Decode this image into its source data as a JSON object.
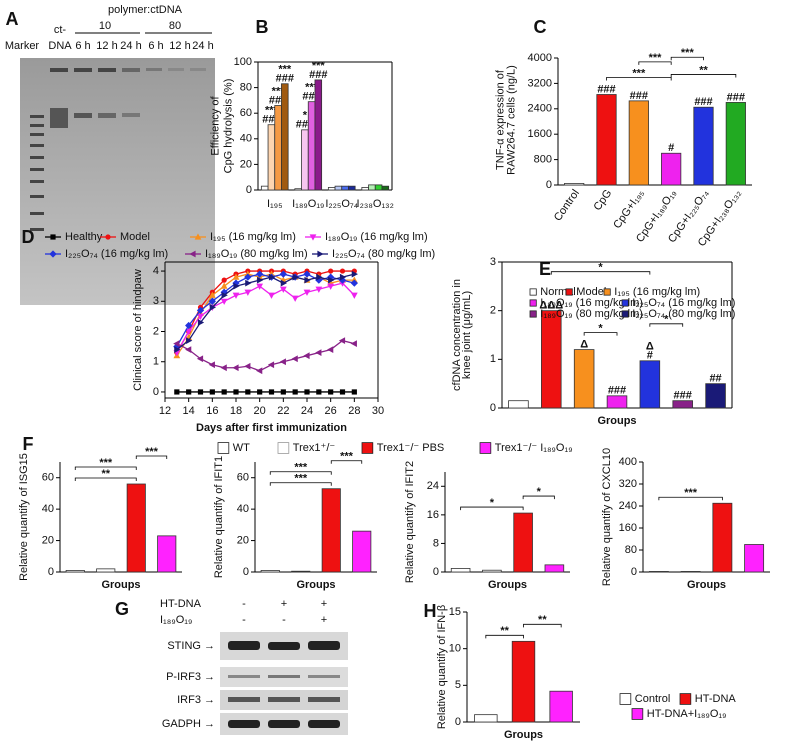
{
  "gel_A": {
    "panel": "A",
    "title": "polymer:ctDNA",
    "ratios": [
      "10",
      "80"
    ],
    "marker": "Marker",
    "ct_dna": [
      "ct-",
      "DNA"
    ],
    "times": [
      "6 h",
      "12 h",
      "24 h",
      "6 h",
      "12 h",
      "24 h"
    ]
  },
  "blot_G": {
    "panel": "G",
    "conditions": [
      {
        "label": "HT-DNA",
        "signs": [
          "-",
          "+",
          "+"
        ]
      },
      {
        "label": "I₁₈₉O₁₉",
        "signs": [
          "-",
          "-",
          "+"
        ]
      }
    ],
    "bands": [
      "STING →",
      "P-IRF3 →",
      "IRF3 →",
      "GADPH →"
    ]
  },
  "chart_data": [
    {
      "type": "grouped_bar",
      "panel": "B",
      "ylabel": [
        "Efficiency of",
        "CpG hydrolysis (%)"
      ],
      "categories": [
        "I₁₉₅",
        "I₁₈₉O₁₉",
        "I₂₂₅O₇₄",
        "I₂₃₈O₁₃₂"
      ],
      "ylim": [
        0,
        100
      ],
      "yticks": [
        0,
        20,
        40,
        60,
        80,
        100
      ],
      "series": [
        {
          "values": [
            3,
            1,
            2,
            2
          ],
          "colors": [
            "#ffffff",
            "#ffffff",
            "#ffffff",
            "#ffffff"
          ]
        },
        {
          "values": [
            51,
            47,
            3,
            4
          ],
          "colors": [
            "#fdd5b0",
            "#f7c6f0",
            "#b8c8f5",
            "#b5f0b5"
          ],
          "labels": [
            [
              "***",
              "###"
            ],
            [
              "*",
              "###"
            ],
            null,
            null
          ]
        },
        {
          "values": [
            66,
            69,
            3,
            4
          ],
          "colors": [
            "#f59a45",
            "#e060e0",
            "#4a6cf0",
            "#30d030"
          ],
          "labels": [
            [
              "***",
              "###"
            ],
            [
              "***",
              "###"
            ],
            null,
            null
          ]
        },
        {
          "values": [
            83,
            86,
            3,
            3
          ],
          "colors": [
            "#a05a10",
            "#8a1a8a",
            "#1a2a9a",
            "#1a6a1a"
          ],
          "labels": [
            [
              "***",
              "###"
            ],
            [
              "***",
              "###"
            ],
            null,
            null
          ]
        }
      ]
    },
    {
      "type": "bar",
      "panel": "C",
      "ylabel": [
        "TNF-α expression of",
        "RAW264.7 cells (ng/L)"
      ],
      "categories": [
        "Control",
        "CpG",
        "CpG+I₁₉₅",
        "CpG+I₁₈₉O₁₉",
        "CpG+I₂₂₅O₇₄",
        "CpG+I₂₃₈O₁₃₂"
      ],
      "values": [
        50,
        2850,
        2650,
        1000,
        2450,
        2600
      ],
      "colors": [
        "#ffffff",
        "#ee1111",
        "#f7901e",
        "#ee22ee",
        "#2233dd",
        "#22aa22"
      ],
      "labels": [
        null,
        "###",
        "###",
        "#",
        "###",
        "###"
      ],
      "ylim": [
        0,
        4000
      ],
      "yticks": [
        0,
        800,
        1600,
        2400,
        3200,
        4000
      ],
      "brackets": [
        {
          "from": 1,
          "to": 3,
          "text": "***"
        },
        {
          "from": 3,
          "to": 5,
          "text": "**"
        },
        {
          "from": 2,
          "to": 3,
          "text": "***"
        },
        {
          "from": 3,
          "to": 4,
          "text": "***"
        }
      ]
    },
    {
      "type": "line",
      "panel": "D",
      "xlabel": "Days after first immunization",
      "ylabel": "Clinical score of hindpaw",
      "xlim": [
        12,
        30
      ],
      "xticks": [
        12,
        14,
        16,
        18,
        20,
        22,
        24,
        26,
        28,
        30
      ],
      "ylim": [
        -0.2,
        4.3
      ],
      "yticks": [
        0,
        1,
        2,
        3,
        4
      ],
      "x": [
        13,
        14,
        15,
        16,
        17,
        18,
        19,
        20,
        21,
        22,
        23,
        24,
        25,
        26,
        27,
        28
      ],
      "series": [
        {
          "name": "Healthy",
          "color": "#000000",
          "marker": "square",
          "values": [
            0,
            0,
            0,
            0,
            0,
            0,
            0,
            0,
            0,
            0,
            0,
            0,
            0,
            0,
            0,
            0
          ]
        },
        {
          "name": "Model",
          "color": "#ee1111",
          "marker": "circle",
          "values": [
            1.3,
            2.0,
            2.8,
            3.3,
            3.7,
            3.9,
            4.0,
            4.0,
            4.0,
            4.0,
            3.9,
            4.0,
            3.9,
            4.0,
            4.0,
            4.0
          ]
        },
        {
          "name": "I₁₉₅ (16 mg/kg lm)",
          "color": "#f7901e",
          "marker": "triangle-up",
          "values": [
            1.2,
            1.8,
            2.6,
            3.2,
            3.5,
            3.8,
            3.9,
            3.8,
            3.9,
            3.7,
            3.8,
            3.7,
            3.8,
            3.6,
            3.7,
            3.7
          ]
        },
        {
          "name": "I₁₈₉O₁₉ (16 mg/kg lm)",
          "color": "#ee22ee",
          "marker": "triangle-down",
          "values": [
            1.3,
            2.0,
            2.5,
            2.8,
            3.0,
            3.2,
            3.3,
            3.5,
            3.2,
            3.4,
            3.1,
            3.3,
            3.4,
            3.5,
            3.6,
            3.2
          ]
        },
        {
          "name": "I₂₂₅O₇₄ (16 mg/kg lm)",
          "color": "#2233dd",
          "marker": "diamond",
          "values": [
            1.5,
            2.2,
            2.7,
            3.0,
            3.3,
            3.6,
            3.8,
            3.9,
            3.8,
            3.9,
            3.8,
            3.9,
            3.7,
            3.8,
            3.7,
            3.6
          ]
        },
        {
          "name": "I₁₈₉O₁₉ (80 mg/kg lm)",
          "color": "#882288",
          "marker": "triangle-left",
          "values": [
            1.6,
            1.4,
            1.1,
            0.9,
            0.8,
            0.8,
            0.85,
            0.7,
            0.9,
            1.0,
            1.1,
            1.2,
            1.3,
            1.4,
            1.7,
            1.6
          ]
        },
        {
          "name": "I₂₂₅O₇₄ (80 mg/kg lm)",
          "color": "#1a1a77",
          "marker": "triangle-right",
          "values": [
            1.4,
            1.7,
            2.3,
            2.8,
            3.2,
            3.5,
            3.6,
            3.7,
            3.8,
            3.6,
            3.8,
            3.7,
            3.8,
            3.7,
            3.8,
            3.9
          ]
        }
      ]
    },
    {
      "type": "bar",
      "panel": "E",
      "xlabel": "Groups",
      "ylabel": [
        "cfDNA concentration in",
        "knee joint (μg/mL)"
      ],
      "values": [
        0.15,
        2.0,
        1.2,
        0.25,
        0.97,
        0.15,
        0.5
      ],
      "colors": [
        "#ffffff",
        "#ee1111",
        "#f7901e",
        "#ee22ee",
        "#2233dd",
        "#882288",
        "#1a1a77"
      ],
      "labels": [
        null,
        "ΔΔΔ",
        "Δ",
        "###",
        [
          "Δ",
          "#"
        ],
        "###",
        "##"
      ],
      "ylim": [
        0,
        3
      ],
      "yticks": [
        0,
        1,
        2,
        3
      ],
      "legend": [
        {
          "name": "Normal",
          "color": "#ffffff"
        },
        {
          "name": "Model",
          "color": "#ee1111"
        },
        {
          "name": "I₁₉₅ (16 mg/kg lm)",
          "color": "#f7901e"
        },
        {
          "name": "I₁₈₉O₁₉ (16 mg/kg lm)",
          "color": "#ee22ee"
        },
        {
          "name": "I₂₂₅O₇₄ (16 mg/kg lm)",
          "color": "#2233dd"
        },
        {
          "name": "I₁₈₉O₁₉ (80 mg/kg lm)",
          "color": "#882288"
        },
        {
          "name": "I₂₂₅O₇₄ (80 mg/kg lm)",
          "color": "#1a1a77"
        }
      ],
      "brackets": [
        {
          "from": 2,
          "to": 3,
          "text": "*"
        },
        {
          "from": 4,
          "to": 5,
          "text": "*"
        },
        {
          "from": 1,
          "to": 4,
          "text": "*"
        }
      ]
    },
    {
      "type": "bar",
      "panel": "F",
      "xlabel": "Groups",
      "ylabel": "Relative quantify of ISG15",
      "values": [
        1,
        2,
        56,
        23
      ],
      "colors": [
        "#ffffff",
        "#ffffff",
        "#ee1111",
        "#ff22ff"
      ],
      "ylim": [
        0,
        70
      ],
      "yticks": [
        0,
        20,
        40,
        60
      ],
      "legend": [
        {
          "name": "WT",
          "color": "#ffffff"
        },
        {
          "name": "Trex1⁺/⁻",
          "color": "#ffffff"
        },
        {
          "name": "Trex1⁻/⁻ PBS",
          "color": "#ee1111"
        },
        {
          "name": "Trex1⁻/⁻ I₁₈₉O₁₉",
          "color": "#ff22ff"
        }
      ],
      "brackets": [
        {
          "from": 0,
          "to": 2,
          "text": "**"
        },
        {
          "from": 0,
          "to": 2,
          "text": "***"
        },
        {
          "from": 2,
          "to": 3,
          "text": "***"
        }
      ]
    },
    {
      "type": "bar",
      "xlabel": "Groups",
      "ylabel": "Relative quantify of IFIT1",
      "values": [
        1,
        0.5,
        53,
        26
      ],
      "colors": [
        "#ffffff",
        "#ffffff",
        "#ee1111",
        "#ff22ff"
      ],
      "ylim": [
        0,
        70
      ],
      "yticks": [
        0,
        20,
        40,
        60
      ],
      "brackets": [
        {
          "from": 0,
          "to": 2,
          "text": "***"
        },
        {
          "from": 0,
          "to": 2,
          "text": "***"
        },
        {
          "from": 2,
          "to": 3,
          "text": "***"
        }
      ]
    },
    {
      "type": "bar",
      "xlabel": "Groups",
      "ylabel": "Relative quantify of IFIT2",
      "values": [
        1,
        0.5,
        16.5,
        2
      ],
      "colors": [
        "#ffffff",
        "#ffffff",
        "#ee1111",
        "#ff22ff"
      ],
      "ylim": [
        0,
        28
      ],
      "yticks": [
        0,
        8,
        16,
        24
      ],
      "brackets": [
        {
          "from": 0,
          "to": 2,
          "text": "*"
        },
        {
          "from": 2,
          "to": 3,
          "text": "*"
        }
      ]
    },
    {
      "type": "bar",
      "xlabel": "Groups",
      "ylabel": "Relative quantify of CXCL10",
      "values": [
        2,
        2,
        250,
        100
      ],
      "colors": [
        "#ffffff",
        "#ffffff",
        "#ee1111",
        "#ff22ff"
      ],
      "ylim": [
        0,
        400
      ],
      "yticks": [
        0,
        80,
        160,
        240,
        320,
        400
      ],
      "brackets": [
        {
          "from": 0,
          "to": 2,
          "text": "***"
        }
      ]
    },
    {
      "type": "bar",
      "panel": "H",
      "xlabel": "Groups",
      "ylabel": "Relative quantify of IFN-β",
      "values": [
        1,
        11,
        4.2
      ],
      "colors": [
        "#ffffff",
        "#ee1111",
        "#ff22ff"
      ],
      "ylim": [
        0,
        15
      ],
      "yticks": [
        0,
        5,
        10,
        15
      ],
      "legend": [
        {
          "name": "Control",
          "color": "#ffffff"
        },
        {
          "name": "HT-DNA",
          "color": "#ee1111"
        },
        {
          "name": "HT-DNA+I₁₈₉O₁₉",
          "color": "#ff22ff"
        }
      ],
      "brackets": [
        {
          "from": 0,
          "to": 1,
          "text": "**"
        },
        {
          "from": 1,
          "to": 2,
          "text": "**"
        }
      ]
    }
  ]
}
